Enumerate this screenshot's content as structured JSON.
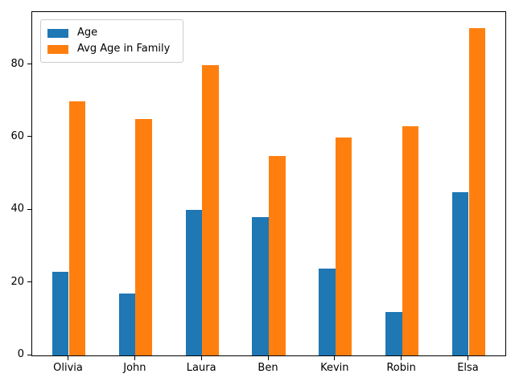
{
  "chart_data": {
    "type": "bar",
    "categories": [
      "Olivia",
      "John",
      "Laura",
      "Ben",
      "Kevin",
      "Robin",
      "Elsa"
    ],
    "series": [
      {
        "name": "Age",
        "color": "#1f77b4",
        "values": [
          23,
          17,
          40,
          38,
          24,
          12,
          45
        ]
      },
      {
        "name": "Avg Age in Family",
        "color": "#ff7f0e",
        "values": [
          70,
          65,
          80,
          55,
          60,
          63,
          90
        ]
      }
    ],
    "title": "",
    "xlabel": "",
    "ylabel": "",
    "yticks": [
      0,
      20,
      40,
      60,
      80
    ],
    "ylim": [
      0,
      94.5
    ],
    "bar_width": 0.25,
    "grid": false,
    "legend_position": "upper left",
    "axis_color": "#000000",
    "background_color": "#ffffff"
  }
}
